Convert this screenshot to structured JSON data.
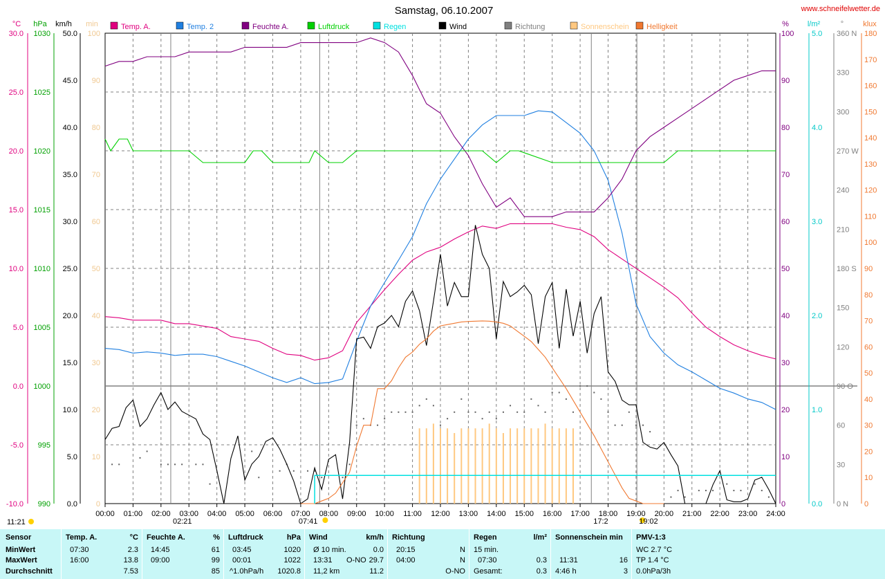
{
  "page": {
    "title": "Samstag, 06.10.2007",
    "website": "www.schneifelwetter.de"
  },
  "legend": [
    {
      "label": "Temp. A.",
      "color": "#e0007f"
    },
    {
      "label": "Temp. 2",
      "color": "#1f7fe0"
    },
    {
      "label": "Feuchte A.",
      "color": "#800080"
    },
    {
      "label": "Luftdruck",
      "color": "#00d000"
    },
    {
      "label": "Regen",
      "color": "#00e0e0"
    },
    {
      "label": "Wind",
      "color": "#000000"
    },
    {
      "label": "Richtung",
      "color": "#808080"
    },
    {
      "label": "Sonnenschein",
      "color": "#ffc880"
    },
    {
      "label": "Helligkeit",
      "color": "#f07830"
    }
  ],
  "axes": {
    "units": {
      "temp": "°C",
      "pressure": "hPa",
      "wind": "km/h",
      "sunshine": "min",
      "humidity": "%",
      "rain": "l/m²",
      "direction": "°",
      "light": "klux"
    },
    "temp_ticks": [
      "30.0",
      "25.0",
      "20.0",
      "15.0",
      "10.0",
      "5.0",
      "0.0",
      "-5.0",
      "-10.0"
    ],
    "pressure_ticks": [
      "1030",
      "1025",
      "1020",
      "1015",
      "1010",
      "1005",
      "1000",
      "995",
      "990"
    ],
    "wind_ticks": [
      "50.0",
      "45.0",
      "40.0",
      "35.0",
      "30.0",
      "25.0",
      "20.0",
      "15.0",
      "10.0",
      "5.0",
      "0.0"
    ],
    "sunshine_ticks": [
      "100",
      "90",
      "80",
      "70",
      "60",
      "50",
      "40",
      "30",
      "20",
      "10",
      "0"
    ],
    "humidity_ticks": [
      "100",
      "90",
      "80",
      "70",
      "60",
      "50",
      "40",
      "30",
      "20",
      "10",
      "0"
    ],
    "rain_ticks": [
      "5.0",
      "4.0",
      "3.0",
      "2.0",
      "1.0",
      "0.0"
    ],
    "direction_ticks": [
      "360 N",
      "330",
      "300",
      "270 W",
      "240",
      "210",
      "180 S",
      "150",
      "120",
      "90 O",
      "60",
      "30",
      "0 N"
    ],
    "light_ticks": [
      "180",
      "170",
      "160",
      "150",
      "140",
      "130",
      "120",
      "110",
      "100",
      "90",
      "80",
      "70",
      "60",
      "50",
      "40",
      "30",
      "20",
      "10",
      "0"
    ],
    "x_ticks": [
      "00:00",
      "01:00",
      "02:00",
      "03:00",
      "04:00",
      "05:00",
      "06:00",
      "07:00",
      "08:00",
      "09:00",
      "10:00",
      "11:00",
      "12:00",
      "13:00",
      "14:00",
      "15:00",
      "16:00",
      "17:00",
      "18:00",
      "19:00",
      "20:00",
      "21:00",
      "22:00",
      "23:00",
      "24:00"
    ]
  },
  "sun_events": [
    {
      "label": "02:21",
      "hour": 2.35,
      "type": "moon"
    },
    {
      "label": "07:41",
      "hour": 7.68,
      "type": "sun"
    },
    {
      "label": "17:2",
      "hour": 17.4,
      "type": "moon"
    },
    {
      "label": "19:02",
      "hour": 19.03,
      "type": "sun"
    }
  ],
  "day_length": "11:21",
  "chart_data": {
    "type": "line",
    "title": "Samstag, 06.10.2007",
    "x_unit": "hour",
    "xlim": [
      0,
      24
    ],
    "series": [
      {
        "name": "Temp. A.",
        "axis": "temp",
        "ylim": [
          -10,
          30
        ],
        "x": [
          0,
          0.5,
          1,
          1.5,
          2,
          2.5,
          3,
          3.5,
          4,
          4.5,
          5,
          5.5,
          6,
          6.5,
          7,
          7.5,
          8,
          8.5,
          9,
          9.5,
          10,
          10.5,
          11,
          11.5,
          12,
          12.5,
          13,
          13.5,
          14,
          14.5,
          15,
          15.5,
          16,
          16.5,
          17,
          17.5,
          18,
          18.5,
          19,
          19.5,
          20,
          20.5,
          21,
          21.5,
          22,
          22.5,
          23,
          23.5,
          24
        ],
        "y": [
          5.9,
          5.8,
          5.6,
          5.6,
          5.6,
          5.3,
          5.3,
          5.1,
          4.9,
          4.2,
          4.0,
          3.8,
          3.2,
          2.7,
          2.6,
          2.2,
          2.4,
          3.0,
          5.4,
          6.8,
          8.2,
          9.5,
          10.7,
          11.4,
          11.8,
          12.5,
          13.1,
          13.6,
          13.4,
          13.8,
          13.8,
          13.8,
          13.8,
          13.5,
          13.3,
          12.7,
          11.6,
          10.8,
          10.0,
          9.2,
          8.4,
          7.5,
          6.2,
          5.0,
          4.2,
          3.5,
          3.0,
          2.6,
          2.3
        ]
      },
      {
        "name": "Temp. 2",
        "axis": "temp",
        "ylim": [
          -10,
          30
        ],
        "x": [
          0,
          0.5,
          1,
          1.5,
          2,
          2.5,
          3,
          3.5,
          4,
          4.5,
          5,
          5.5,
          6,
          6.5,
          7,
          7.5,
          8,
          8.5,
          9,
          9.5,
          10,
          10.5,
          11,
          11.5,
          12,
          12.5,
          13,
          13.5,
          14,
          14.5,
          15,
          15.5,
          16,
          16.5,
          17,
          17.5,
          18,
          18.5,
          19,
          19.5,
          20,
          20.5,
          21,
          21.5,
          22,
          22.5,
          23,
          23.5,
          24
        ],
        "y": [
          3.2,
          3.1,
          2.8,
          2.9,
          2.8,
          2.6,
          2.7,
          2.7,
          2.5,
          2.1,
          1.7,
          1.2,
          0.7,
          0.3,
          0.7,
          0.2,
          0.3,
          0.6,
          3.8,
          6.8,
          8.8,
          10.7,
          12.7,
          15.5,
          17.6,
          19.3,
          21.0,
          22.2,
          23.0,
          23.0,
          23.0,
          23.4,
          23.3,
          22.4,
          21.5,
          20.0,
          17.5,
          13.0,
          7.0,
          4.2,
          2.8,
          1.8,
          1.2,
          0.5,
          -0.2,
          -0.6,
          -1.1,
          -1.4,
          -2.0
        ]
      },
      {
        "name": "Feuchte A.",
        "axis": "humidity",
        "ylim": [
          0,
          100
        ],
        "x": [
          0,
          0.5,
          1,
          1.5,
          2,
          2.5,
          3,
          3.5,
          4,
          4.5,
          5,
          5.5,
          6,
          6.5,
          7,
          7.5,
          8,
          8.5,
          9,
          9.5,
          10,
          10.5,
          11,
          11.5,
          12,
          12.5,
          13,
          13.5,
          14,
          14.5,
          15,
          15.5,
          16,
          16.5,
          17,
          17.5,
          18,
          18.5,
          19,
          19.5,
          20,
          20.5,
          21,
          21.5,
          22,
          22.5,
          23,
          23.5,
          24
        ],
        "y": [
          93,
          94,
          94,
          95,
          95,
          95,
          96,
          96,
          96,
          96,
          97,
          97,
          97,
          97,
          98,
          98,
          98,
          98,
          98,
          99,
          98,
          96,
          91,
          85,
          83,
          78,
          74,
          68,
          63,
          65,
          61,
          61,
          61,
          62,
          62,
          62,
          65,
          69,
          75,
          78,
          80,
          82,
          84,
          86,
          88,
          90,
          91,
          92,
          92
        ]
      },
      {
        "name": "Luftdruck",
        "axis": "pressure",
        "ylim": [
          990,
          1030
        ],
        "x": [
          0,
          0.2,
          0.5,
          0.8,
          1,
          3,
          3.5,
          5,
          5.3,
          5.6,
          6,
          6.5,
          7,
          7.3,
          7.5,
          8,
          8.5,
          9,
          13.5,
          14,
          14.5,
          14.8,
          16,
          19,
          20,
          20.5,
          24
        ],
        "y": [
          1021.0,
          1020.0,
          1021.0,
          1021.0,
          1020.0,
          1020.0,
          1019.0,
          1019.0,
          1020.0,
          1020.0,
          1019.0,
          1019.0,
          1019.0,
          1019.0,
          1020.0,
          1019.0,
          1019.0,
          1020.0,
          1020.0,
          1019.0,
          1020.0,
          1020.0,
          1019.0,
          1019.0,
          1019.0,
          1020.0,
          1020.0
        ]
      },
      {
        "name": "Wind",
        "axis": "wind",
        "ylim": [
          0,
          50
        ],
        "x": [
          0,
          0.25,
          0.5,
          0.75,
          1,
          1.25,
          1.5,
          1.75,
          2,
          2.25,
          2.5,
          2.75,
          3,
          3.25,
          3.5,
          3.75,
          4,
          4.25,
          4.5,
          4.75,
          5,
          5.25,
          5.5,
          5.75,
          6,
          6.25,
          6.5,
          6.75,
          7,
          7.25,
          7.5,
          7.75,
          8,
          8.25,
          8.5,
          8.75,
          9,
          9.25,
          9.5,
          9.75,
          10,
          10.25,
          10.5,
          10.75,
          11,
          11.25,
          11.5,
          11.75,
          12,
          12.25,
          12.5,
          12.75,
          13,
          13.25,
          13.5,
          13.75,
          14,
          14.25,
          14.5,
          14.75,
          15,
          15.25,
          15.5,
          15.75,
          16,
          16.25,
          16.5,
          16.75,
          17,
          17.25,
          17.5,
          17.75,
          18,
          18.25,
          18.5,
          18.75,
          19,
          19.25,
          19.5,
          19.75,
          20,
          20.25,
          20.5,
          20.75,
          21,
          21.25,
          21.5,
          21.75,
          22,
          22.25,
          22.5,
          22.75,
          23,
          23.25,
          23.5,
          23.75,
          24
        ],
        "y": [
          6.8,
          8.0,
          8.2,
          10.2,
          11.0,
          8.2,
          9.0,
          10.5,
          11.8,
          10.0,
          10.8,
          9.8,
          9.4,
          9.0,
          7.4,
          6.8,
          3.5,
          0,
          4.8,
          7.2,
          2.5,
          4.2,
          5.0,
          6.6,
          7.0,
          5.8,
          4.2,
          2.4,
          0,
          0.5,
          3.8,
          1.5,
          4.7,
          5.2,
          0.5,
          6.5,
          17.5,
          17.7,
          16.5,
          18.8,
          19.2,
          20.0,
          18.8,
          21.5,
          22.6,
          20.5,
          16.8,
          21.5,
          26.5,
          21.0,
          23.5,
          22.0,
          22.0,
          29.6,
          26.5,
          25.0,
          17.5,
          23.6,
          22.0,
          22.5,
          23.2,
          22.2,
          17.0,
          22.0,
          23.5,
          16.5,
          22.8,
          17.8,
          21.5,
          16.0,
          20.2,
          22.0,
          14.0,
          13.0,
          11.0,
          10.5,
          10.5,
          6.5,
          6.0,
          5.8,
          6.5,
          5.2,
          4.0,
          0,
          0,
          0,
          0,
          2.0,
          3.5,
          0.4,
          0.2,
          0.2,
          0.5,
          2.5,
          2.8,
          1.5,
          0
        ]
      },
      {
        "name": "Helligkeit",
        "axis": "light",
        "ylim": [
          0,
          180
        ],
        "x": [
          7,
          7.25,
          7.5,
          7.75,
          8,
          8.25,
          8.5,
          8.75,
          9,
          9.25,
          9.5,
          9.75,
          10,
          10.25,
          10.5,
          10.75,
          11,
          11.25,
          11.5,
          11.75,
          12,
          12.25,
          12.5,
          12.75,
          13,
          13.25,
          13.5,
          13.75,
          14,
          14.25,
          14.5,
          14.75,
          15,
          15.25,
          15.5,
          15.75,
          16,
          16.25,
          16.5,
          16.75,
          17,
          17.25,
          17.5,
          17.75,
          18,
          18.25,
          18.5,
          18.75,
          19,
          19.25,
          19.5,
          20
        ],
        "y": [
          0,
          0,
          0,
          1,
          2,
          4,
          8,
          12,
          22,
          30,
          30,
          44,
          44,
          47,
          52,
          56,
          58,
          61,
          63,
          66,
          68,
          68.5,
          69,
          69.5,
          69.7,
          69.8,
          69.9,
          69.8,
          69.5,
          69,
          68,
          66,
          64,
          62,
          59,
          56,
          52,
          48,
          44,
          39.5,
          35,
          30.5,
          26,
          21,
          16,
          11,
          6,
          2,
          1,
          0,
          0,
          0
        ]
      },
      {
        "name": "Regen",
        "axis": "rain",
        "ylim": [
          0,
          5
        ],
        "x": [
          7.5,
          7.5,
          7.51,
          24
        ],
        "y": [
          0,
          0.3,
          0.3,
          0.3
        ]
      },
      {
        "name": "Sonnenschein",
        "axis": "sunshine",
        "type": "bar",
        "ylim": [
          0,
          100
        ],
        "x": [
          11.25,
          11.5,
          11.75,
          12,
          12.25,
          12.5,
          12.75,
          13,
          13.25,
          13.5,
          13.75,
          14,
          14.25,
          14.5,
          14.75,
          15,
          15.25,
          15.5,
          15.75,
          16,
          16.25,
          16.5,
          16.75
        ],
        "y": [
          16,
          16,
          17,
          16,
          16,
          15,
          16,
          16,
          16,
          16,
          17,
          16,
          15,
          16,
          16,
          16,
          16,
          16,
          17,
          16,
          16,
          16,
          16
        ]
      },
      {
        "name": "Richtung",
        "axis": "direction",
        "type": "scatter",
        "ylim": [
          0,
          360
        ],
        "x": [
          0.25,
          0.5,
          1.25,
          1.5,
          2,
          2.25,
          2.5,
          2.75,
          3.25,
          3.5,
          3.75,
          5.25,
          5.5,
          6.25,
          6.5,
          6.75,
          7.25,
          7.5,
          7.75,
          8.5,
          8.75,
          9,
          9.25,
          9.5,
          9.75,
          10,
          10.25,
          10.5,
          10.75,
          11,
          11.25,
          11.5,
          11.75,
          12,
          12.25,
          12.5,
          12.75,
          13,
          13.25,
          13.5,
          13.75,
          14,
          14.25,
          14.5,
          14.75,
          15,
          15.25,
          15.5,
          15.75,
          16,
          16.25,
          16.5,
          16.75,
          17,
          17.25,
          17.5,
          17.75,
          18,
          18.25,
          18.5,
          18.75,
          19,
          19.25,
          19.5,
          20.25,
          20.5,
          20.75,
          21.25,
          21.5,
          21.75,
          22.25,
          22.5,
          22.75,
          23.25,
          23.5,
          23.75
        ],
        "y": [
          30,
          30,
          35,
          40,
          30,
          30,
          30,
          30,
          30,
          30,
          15,
          40,
          20,
          25,
          30,
          25,
          25,
          25,
          20,
          20,
          30,
          60,
          65,
          60,
          60,
          65,
          70,
          70,
          70,
          70,
          75,
          80,
          75,
          60,
          65,
          70,
          80,
          70,
          70,
          65,
          70,
          65,
          70,
          75,
          70,
          70,
          80,
          75,
          70,
          85,
          85,
          80,
          70,
          90,
          90,
          85,
          80,
          70,
          60,
          60,
          70,
          60,
          60,
          55,
          5,
          10,
          5,
          10,
          10,
          10,
          15,
          10,
          10,
          15,
          10,
          5
        ]
      }
    ]
  },
  "stats": {
    "sensor": {
      "title": "Sensor",
      "rows": [
        "MinWert",
        "MaxWert",
        "Durchschnitt"
      ]
    },
    "temp": {
      "title": "Temp. A.",
      "unit": "°C",
      "times": [
        "07:30",
        "16:00",
        ""
      ],
      "values": [
        "2.3",
        "13.8",
        "7.53"
      ]
    },
    "humidity": {
      "title": "Feuchte A.",
      "unit": "%",
      "times": [
        "14:45",
        "09:00",
        ""
      ],
      "values": [
        "61",
        "99",
        "85"
      ]
    },
    "pressure": {
      "title": "Luftdruck",
      "unit": "hPa",
      "times": [
        "03:45",
        "00:01",
        "^1.0hPa/h"
      ],
      "values": [
        "1020",
        "1022",
        "1020.8"
      ]
    },
    "wind": {
      "title": "Wind",
      "unit": "km/h",
      "times": [
        "Ø 10 min.",
        "13:31",
        "11,2 km"
      ],
      "mids": [
        "",
        "O-NO",
        ""
      ],
      "values": [
        "0.0",
        "29.7",
        "11.2"
      ]
    },
    "direction": {
      "title": "Richtung",
      "times": [
        "20:15",
        "04:00",
        ""
      ],
      "values": [
        "N",
        "N",
        "O-NO"
      ]
    },
    "rain": {
      "title": "Regen",
      "unit": "l/m²",
      "times": [
        "15 min.",
        "07:30",
        "Gesamt:"
      ],
      "values": [
        "",
        "0.3",
        "0.3"
      ]
    },
    "sunshine": {
      "title": "Sonnenschein min",
      "times": [
        "",
        "11:31",
        "4:46 h"
      ],
      "values": [
        "",
        "16",
        "3"
      ]
    },
    "pmv": {
      "title": "PMV-1:3",
      "lines": [
        "WC 2.7 °C",
        "TP 1.4 °C",
        "0.0hPa/3h"
      ]
    }
  }
}
